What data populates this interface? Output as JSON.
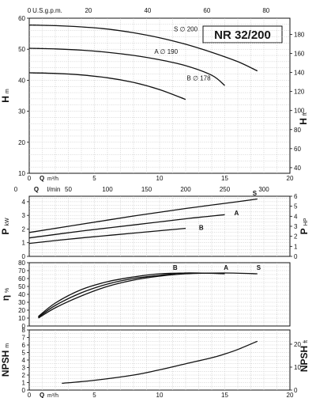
{
  "chart_data": [
    {
      "type": "line",
      "panel": "H",
      "title": "NR 32/200",
      "ylabel": "H",
      "ylabel_unit": "m",
      "y2label": "H",
      "y2label_unit": "ft",
      "xlim": [
        0,
        20
      ],
      "ylim": [
        10,
        60
      ],
      "y2lim": [
        34.1,
        197
      ],
      "xticks": [
        0,
        5,
        10,
        15,
        20
      ],
      "yticks": [
        10,
        20,
        30,
        40,
        50,
        60
      ],
      "y2ticks": [
        40,
        60,
        80,
        100,
        120,
        140,
        160,
        180
      ],
      "top_axis": {
        "label": "U.S.g.p.m.",
        "max": 88.06,
        "ticks": [
          0,
          20,
          40,
          60,
          80
        ]
      },
      "series": [
        {
          "name": "S",
          "diameter_label": "S ∅ 200",
          "x": [
            0,
            2,
            4,
            6,
            8,
            10,
            12,
            14,
            16,
            17.5
          ],
          "y": [
            57.8,
            57.6,
            57.2,
            56.5,
            55.3,
            53.7,
            51.6,
            49.0,
            46.0,
            43.0
          ]
        },
        {
          "name": "A",
          "diameter_label": "A ∅ 190",
          "x": [
            0,
            2,
            4,
            6,
            8,
            10,
            12,
            14,
            15
          ],
          "y": [
            50.3,
            50.1,
            49.7,
            49.0,
            48.0,
            46.6,
            44.7,
            41.6,
            38.3
          ]
        },
        {
          "name": "B",
          "diameter_label": "B ∅ 178",
          "x": [
            0,
            2,
            4,
            6,
            8,
            10,
            12
          ],
          "y": [
            42.4,
            42.2,
            41.7,
            40.8,
            39.3,
            37.0,
            33.8
          ]
        }
      ]
    },
    {
      "type": "line",
      "panel": "P",
      "ylabel": "P",
      "ylabel_unit": "kW",
      "y2label": "P",
      "y2label_unit": "HP",
      "xlim": [
        0,
        20
      ],
      "ylim": [
        0,
        4.4
      ],
      "y2lim": [
        0,
        6
      ],
      "yticks": [
        0,
        1,
        2,
        3,
        4
      ],
      "y2ticks": [
        0,
        1,
        2,
        3,
        4,
        5,
        6
      ],
      "top_axis": {
        "label": "l/min",
        "max": 333.3,
        "ticks": [
          0,
          50,
          100,
          150,
          200,
          250,
          300
        ]
      },
      "series": [
        {
          "name": "S",
          "x": [
            0,
            4,
            8,
            12,
            16,
            17.5
          ],
          "y": [
            1.75,
            2.35,
            2.95,
            3.5,
            4.0,
            4.2
          ]
        },
        {
          "name": "A",
          "x": [
            0,
            4,
            8,
            12,
            15
          ],
          "y": [
            1.35,
            1.85,
            2.3,
            2.75,
            3.05
          ]
        },
        {
          "name": "B",
          "x": [
            0,
            4,
            8,
            12
          ],
          "y": [
            0.95,
            1.35,
            1.7,
            2.05
          ]
        }
      ]
    },
    {
      "type": "line",
      "panel": "eta",
      "ylabel": "η",
      "ylabel_unit": "%",
      "xlim": [
        0,
        20
      ],
      "ylim": [
        0,
        80
      ],
      "yticks": [
        0,
        10,
        20,
        30,
        40,
        50,
        60,
        70,
        80
      ],
      "series": [
        {
          "name": "B",
          "x": [
            0.7,
            2,
            4,
            6,
            8,
            10,
            12
          ],
          "y": [
            12,
            29,
            46,
            56,
            62,
            66,
            67
          ]
        },
        {
          "name": "A",
          "x": [
            0.7,
            2,
            4,
            6,
            8,
            10,
            12,
            15
          ],
          "y": [
            11,
            26,
            42,
            53,
            60,
            64,
            67,
            66
          ]
        },
        {
          "name": "S",
          "x": [
            0.7,
            2,
            4,
            6,
            8,
            10,
            12,
            15,
            17.5
          ],
          "y": [
            10,
            23,
            38,
            50,
            58,
            63,
            66,
            67,
            66
          ]
        }
      ]
    },
    {
      "type": "line",
      "panel": "NPSH",
      "ylabel": "NPSH",
      "ylabel_unit": "m",
      "y2label": "NPSH",
      "y2label_unit": "ft",
      "xlabel": "Q",
      "xlabel_unit": "m³/h",
      "xlim": [
        0,
        20
      ],
      "ylim": [
        0,
        8
      ],
      "y2lim": [
        0,
        26.2
      ],
      "xticks": [
        0,
        5,
        10,
        15,
        20
      ],
      "yticks": [
        0,
        1,
        2,
        3,
        4,
        5,
        6,
        7,
        8
      ],
      "y2ticks": [
        0,
        10,
        20
      ],
      "series": [
        {
          "name": "NPSH",
          "x": [
            2.5,
            5,
            8,
            10,
            12,
            14,
            15,
            16,
            17.5
          ],
          "y": [
            0.9,
            1.3,
            2.0,
            2.7,
            3.5,
            4.3,
            4.8,
            5.4,
            6.5
          ]
        }
      ]
    }
  ]
}
